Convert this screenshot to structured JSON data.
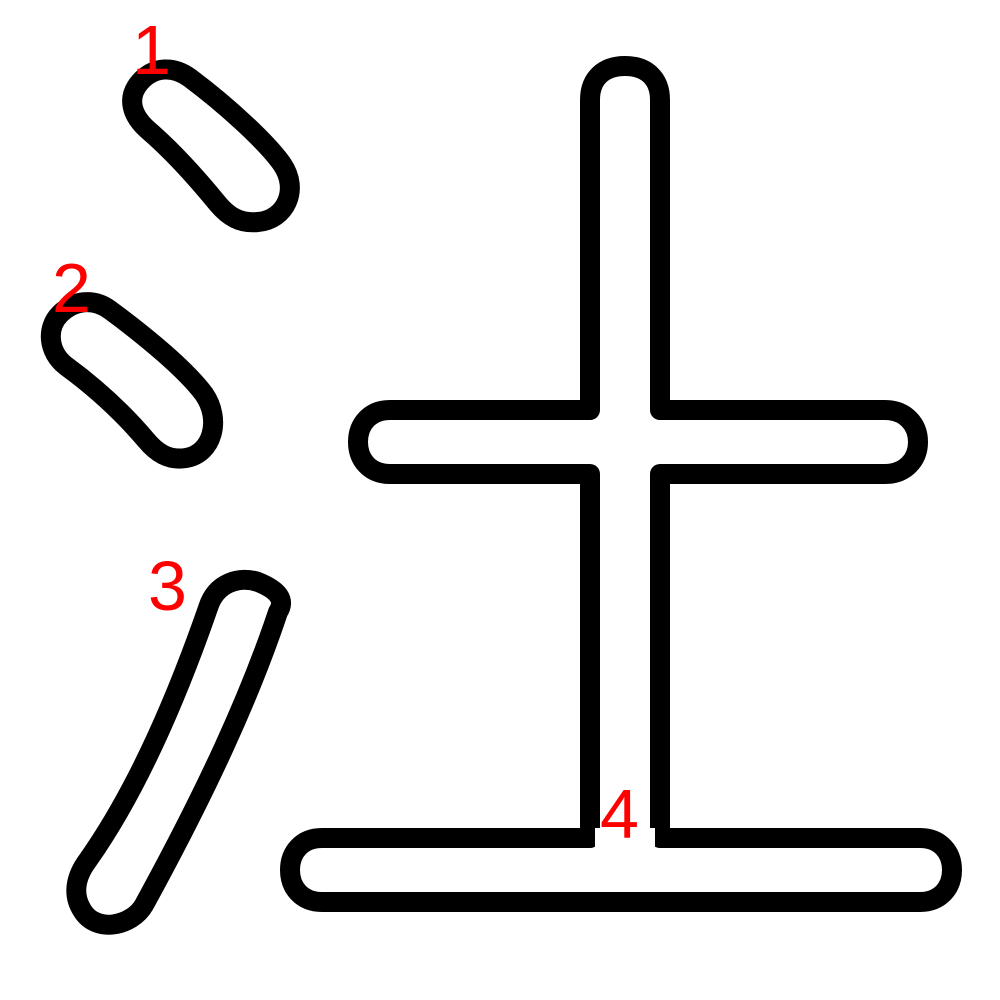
{
  "colors": {
    "stroke_outline": "#000000",
    "stroke_fill": "#ffffff",
    "number_color": "#ff0000",
    "background": "#ffffff"
  },
  "strokes": [
    {
      "order": 1,
      "label": "1"
    },
    {
      "order": 2,
      "label": "2"
    },
    {
      "order": 3,
      "label": "3"
    },
    {
      "order": 4,
      "label": "4"
    }
  ]
}
